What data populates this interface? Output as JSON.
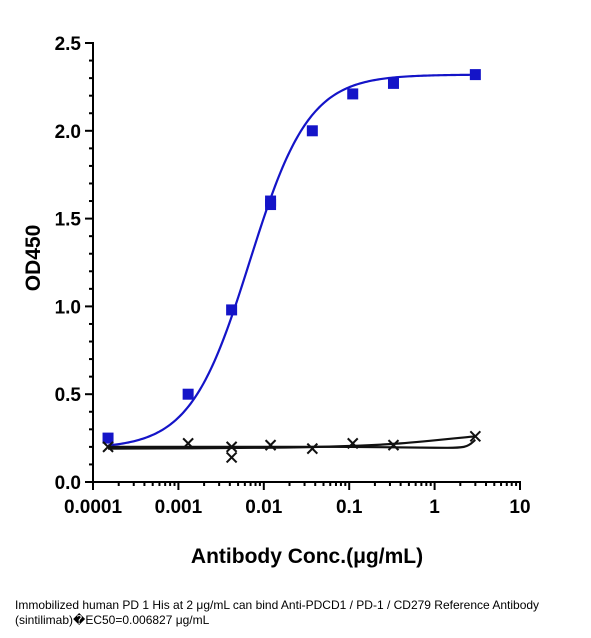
{
  "chart_data": {
    "type": "scatter",
    "xlabel": "Antibody Conc.(μg/mL)",
    "ylabel": "OD450",
    "xscale": "log",
    "xlim": [
      0.0001,
      10
    ],
    "ylim": [
      0,
      2.5
    ],
    "x_ticks": [
      "0.0001",
      "0.001",
      "0.01",
      "0.1",
      "1",
      "10"
    ],
    "y_ticks": [
      "0.0",
      "0.5",
      "1.0",
      "1.5",
      "2.0",
      "2.5"
    ],
    "grid": false,
    "series": [
      {
        "marker": "square",
        "color": "#1414c8",
        "x": [
          0.00015,
          0.0013,
          0.0042,
          0.012,
          0.012,
          0.037,
          0.11,
          0.33,
          3.0
        ],
        "y": [
          0.25,
          0.5,
          0.98,
          1.58,
          1.6,
          2.0,
          2.21,
          2.27,
          2.32
        ],
        "fit": {
          "model": "4PL",
          "bottom": 0.19,
          "top": 2.32,
          "ec50": 0.006827,
          "hill": 1.25
        }
      },
      {
        "marker": "x",
        "color": "#111111",
        "x": [
          0.00015,
          0.0013,
          0.0042,
          0.0042,
          0.012,
          0.037,
          0.11,
          0.33,
          3.0
        ],
        "y": [
          0.2,
          0.22,
          0.2,
          0.14,
          0.21,
          0.19,
          0.22,
          0.21,
          0.26
        ],
        "fit_upper": [
          [
            0.00015,
            0.19
          ],
          [
            0.01,
            0.195
          ],
          [
            0.1,
            0.205
          ],
          [
            0.4,
            0.22
          ],
          [
            3.0,
            0.26
          ]
        ],
        "fit_lower": [
          [
            0.00015,
            0.2
          ],
          [
            0.01,
            0.2
          ],
          [
            0.1,
            0.2
          ],
          [
            1.0,
            0.195
          ],
          [
            2.2,
            0.2
          ],
          [
            3.0,
            0.24
          ]
        ]
      }
    ]
  },
  "caption": "Immobilized human PD 1 His at 2  μg/mL can bind  Anti-PDCD1 / PD-1 / CD279 Reference Antibody (sintilimab)�EC50=0.006827 μg/mL"
}
